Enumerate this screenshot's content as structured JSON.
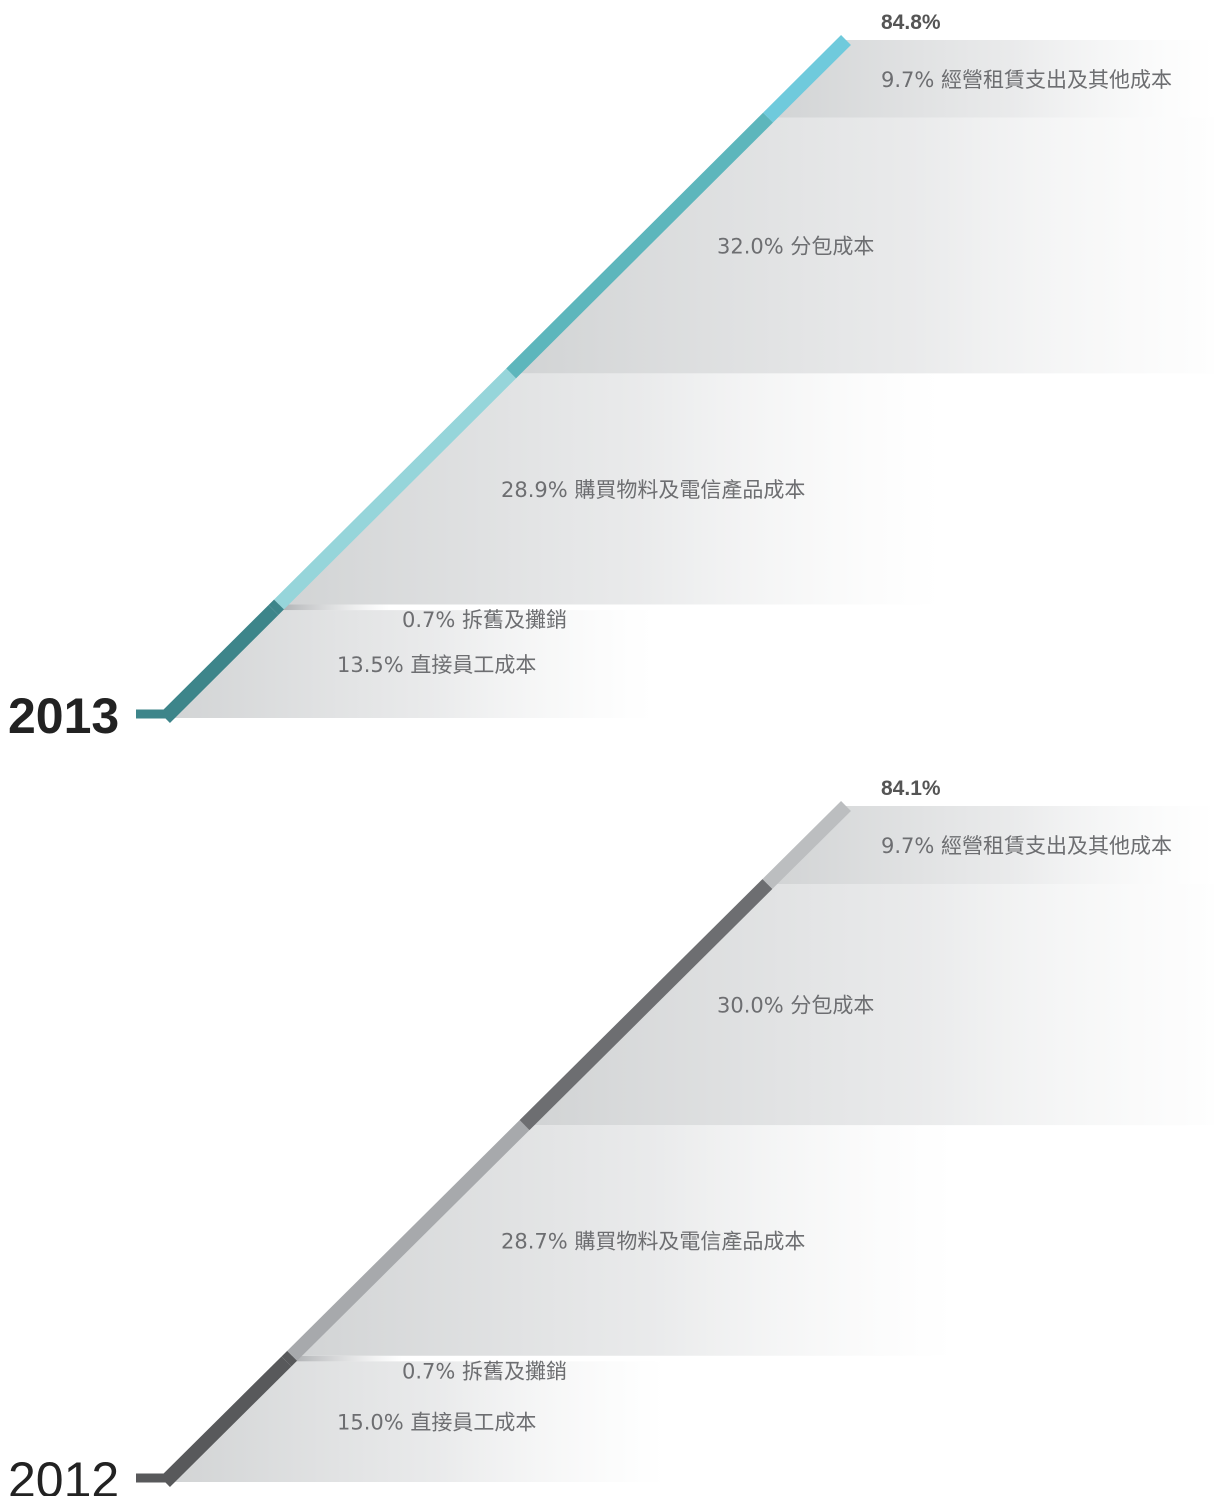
{
  "chart_data": [
    {
      "type": "bar",
      "year": "2013",
      "year_emphasis": "bold",
      "total": 84.8,
      "total_label": "84.8%",
      "segments": [
        {
          "value": 13.5,
          "label": "13.5% 直接員工成本",
          "color": "#3d858a"
        },
        {
          "value": 0.7,
          "label": "0.7% 拆舊及攤銷",
          "color": "#3d858a"
        },
        {
          "value": 28.9,
          "label": "28.9% 購買物料及電信產品成本",
          "color": "#96d5da"
        },
        {
          "value": 32.0,
          "label": "32.0% 分包成本",
          "color": "#5db6bc"
        },
        {
          "value": 9.7,
          "label": "9.7% 經營租賃支出及其他成本",
          "color": "#6fcadc"
        }
      ]
    },
    {
      "type": "bar",
      "year": "2012",
      "year_emphasis": "normal",
      "total": 84.1,
      "total_label": "84.1%",
      "segments": [
        {
          "value": 15.0,
          "label": "15.0% 直接員工成本",
          "color": "#58595b"
        },
        {
          "value": 0.7,
          "label": "0.7% 拆舊及攤銷",
          "color": "#58595b"
        },
        {
          "value": 28.7,
          "label": "28.7% 購買物料及電信產品成本",
          "color": "#a7a9ac"
        },
        {
          "value": 30.0,
          "label": "30.0% 分包成本",
          "color": "#6d6e71"
        },
        {
          "value": 9.7,
          "label": "9.7% 經營租賃支出及其他成本",
          "color": "#bcbec0"
        }
      ]
    }
  ]
}
